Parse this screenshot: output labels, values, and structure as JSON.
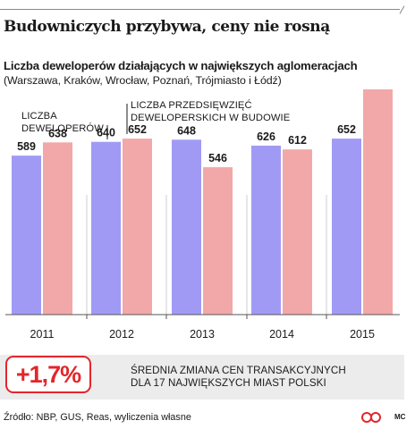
{
  "header": {
    "title": "Budowniczych przybywa, ceny nie rosną",
    "subtitle": "Liczba deweloperów działających w największych aglomeracjach",
    "subtitle2": "(Warszawa, Kraków, Wrocław, Poznań, Trójmiasto i Łódź)"
  },
  "chart_data": {
    "type": "bar",
    "categories": [
      "2011",
      "2012",
      "2013",
      "2014",
      "2015"
    ],
    "series": [
      {
        "name": "LICZBA DEWELOPERÓW",
        "values": [
          589,
          640,
          648,
          626,
          652
        ],
        "color": "#a19af5"
      },
      {
        "name": "LICZBA PRZEDSIĘWZIĘĆ DEWELOPERSKICH W BUDOWIE",
        "values": [
          638,
          652,
          546,
          612,
          851
        ],
        "color": "#f2a8a8"
      }
    ],
    "ylim": [
      0,
      1000
    ],
    "grid": false,
    "legend_placement": "inside-top-left"
  },
  "legend": {
    "series1_line1": "LICZBA",
    "series1_line2": "DEWELOPERÓW",
    "series2_line1": "LICZBA PRZEDSIĘWZIĘĆ",
    "series2_line2": "DEWELOPERSKICH W BUDOWIE"
  },
  "summary": {
    "change": "+1,7%",
    "note_line1": "ŚREDNIA ZMIANA CEN TRANSAKCYJNYCH",
    "note_line2": "DLA 17 NAJWIĘKSZYCH MIAST POLSKI",
    "accent_color": "#e3262b"
  },
  "footer": {
    "source": "Źródło: NBP, GUS, Reas, wyliczenia własne",
    "author": "MC",
    "logo_icon": "rp-logo-icon"
  }
}
